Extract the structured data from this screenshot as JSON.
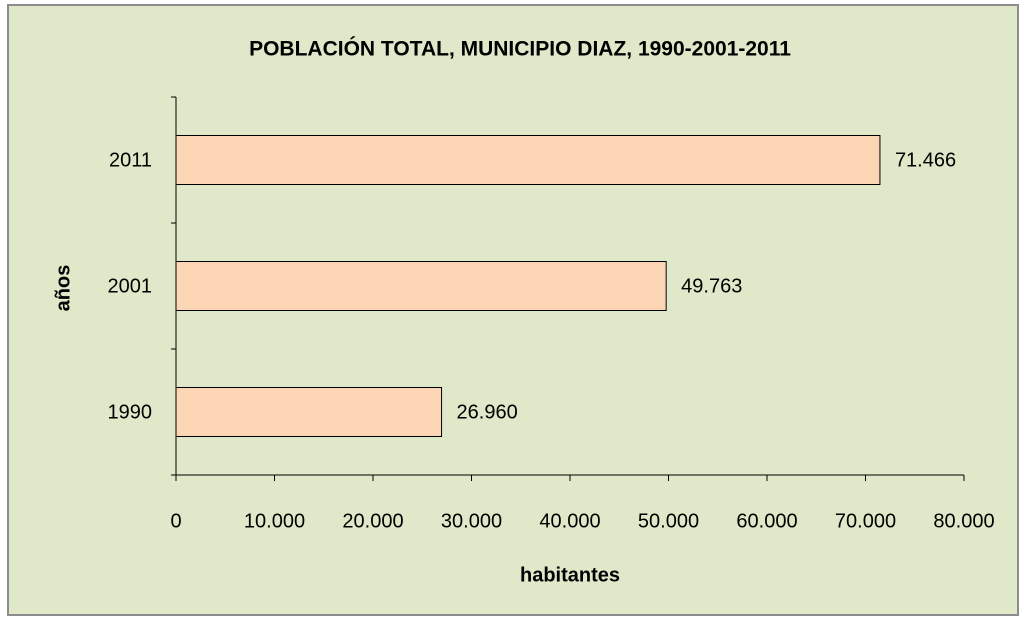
{
  "chart_data": {
    "type": "barh",
    "title": "POBLACIÓN TOTAL, MUNICIPIO DIAZ, 1990-2001-2011",
    "x_label": "habitantes",
    "y_label": "años",
    "categories": [
      "1990",
      "2001",
      "2011"
    ],
    "values": [
      26960,
      49763,
      71466
    ],
    "value_labels": [
      "26.960",
      "49.763",
      "71.466"
    ],
    "color": "#fcd5b5",
    "xlim": [
      0,
      80000
    ],
    "xticks": [
      0,
      {
        "value": 10000,
        "label": "10.000"
      },
      {
        "value": 20000,
        "label": "20.000"
      },
      {
        "value": 30000,
        "label": "30.000"
      },
      {
        "value": 40000,
        "label": "40.000"
      },
      {
        "value": 50000,
        "label": "50.000"
      },
      {
        "value": 60000,
        "label": "60.000"
      },
      {
        "value": 70000,
        "label": "70.000"
      },
      {
        "value": 80000,
        "label": "80.000"
      }
    ],
    "grid": false
  }
}
